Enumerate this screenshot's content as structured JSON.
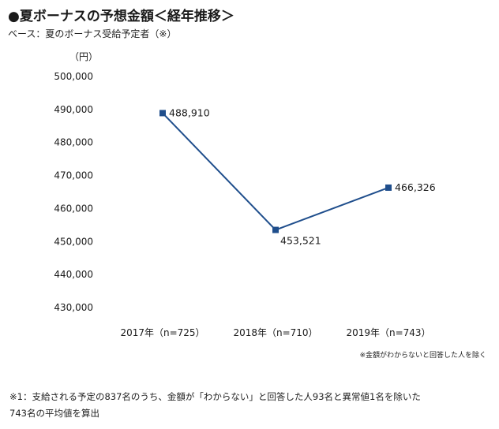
{
  "header": {
    "title": "●夏ボーナスの予想金額＜経年推移＞",
    "subtitle": "ベース：夏のボーナス受給予定者（※）"
  },
  "notes": {
    "right": "※金額がわからないと回答した人を除く",
    "bottom_line1": "※1：支給される予定の837名のうち、金額が「わからない」と回答した人93名と異常値1名を除いた",
    "bottom_line2": "743名の平均値を算出"
  },
  "chart_data": {
    "type": "line",
    "ylabel": "（円）",
    "categories": [
      "2017年（n=725）",
      "2018年（n=710）",
      "2019年（n=743）"
    ],
    "series": [
      {
        "values": [
          488910,
          453521,
          466326
        ],
        "data_labels": [
          "488,910",
          "453,521",
          "466,326"
        ],
        "color": "#1f4e8c"
      }
    ],
    "ylim": [
      430000,
      500000
    ],
    "yticks": [
      430000,
      440000,
      450000,
      460000,
      470000,
      480000,
      490000,
      500000
    ],
    "ytick_labels": [
      "430,000",
      "440,000",
      "450,000",
      "460,000",
      "470,000",
      "480,000",
      "490,000",
      "500,000"
    ],
    "grid": false,
    "legend": false
  }
}
